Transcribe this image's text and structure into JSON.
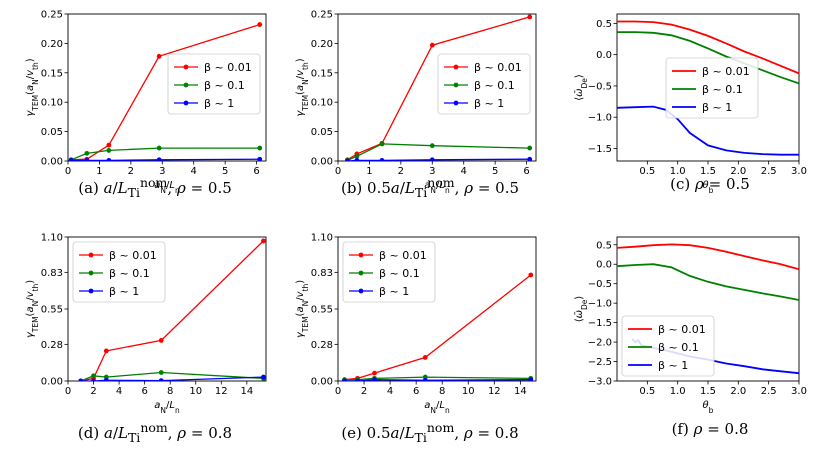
{
  "panels": [
    {
      "id": "a",
      "caption": "(a) a/L_Ti^nom, ρ = 0.5",
      "xlabel": "a_N/L_n",
      "ylabel": "γ_TEM(a_N/v_th)",
      "xlim": [
        0,
        6.3
      ],
      "ylim": [
        0,
        0.25
      ],
      "xticks": [
        0,
        1,
        2,
        3,
        4,
        5,
        6
      ],
      "yticks": [
        0.0,
        0.05,
        0.1,
        0.15,
        0.2,
        0.25
      ],
      "xtick_labels": [
        "0",
        "1",
        "2",
        "3",
        "4",
        "5",
        "6"
      ],
      "ytick_labels": [
        "0.00",
        "0.05",
        "0.10",
        "0.15",
        "0.20",
        "0.25"
      ],
      "legend": "right",
      "series": [
        {
          "name": "β ~ 0.01",
          "color": "#ff0000",
          "x": [
            0.1,
            0.6,
            1.3,
            2.9,
            6.1
          ],
          "y": [
            0.002,
            0.003,
            0.027,
            0.178,
            0.232
          ]
        },
        {
          "name": "β ~ 0.1",
          "color": "#008000",
          "x": [
            0.1,
            0.6,
            1.3,
            2.9,
            6.1
          ],
          "y": [
            0.002,
            0.013,
            0.018,
            0.022,
            0.022
          ]
        },
        {
          "name": "β ~ 1",
          "color": "#0000ff",
          "x": [
            0.1,
            0.6,
            1.3,
            2.9,
            6.1
          ],
          "y": [
            0.001,
            0.001,
            0.001,
            0.002,
            0.003
          ]
        }
      ]
    },
    {
      "id": "b",
      "caption": "(b) 0.5a/L_Ti^nom, ρ = 0.5",
      "xlabel": "a_N/L_n",
      "ylabel": "γ_TEM(a_N/v_th)",
      "xlim": [
        0,
        6.3
      ],
      "ylim": [
        0,
        0.25
      ],
      "xticks": [
        0,
        1,
        2,
        3,
        4,
        5,
        6
      ],
      "yticks": [
        0.0,
        0.05,
        0.1,
        0.15,
        0.2,
        0.25
      ],
      "xtick_labels": [
        "0",
        "1",
        "2",
        "3",
        "4",
        "5",
        "6"
      ],
      "ytick_labels": [
        "0.00",
        "0.05",
        "0.10",
        "0.15",
        "0.20",
        "0.25"
      ],
      "legend": "right",
      "series": [
        {
          "name": "β ~ 0.01",
          "color": "#ff0000",
          "x": [
            0.3,
            0.6,
            1.4,
            3.0,
            6.1
          ],
          "y": [
            0.002,
            0.012,
            0.03,
            0.197,
            0.245
          ]
        },
        {
          "name": "β ~ 0.1",
          "color": "#008000",
          "x": [
            0.3,
            0.6,
            1.4,
            3.0,
            6.1
          ],
          "y": [
            0.001,
            0.008,
            0.029,
            0.026,
            0.022
          ]
        },
        {
          "name": "β ~ 1",
          "color": "#0000ff",
          "x": [
            0.3,
            0.6,
            1.4,
            3.0,
            6.1
          ],
          "y": [
            0.0,
            0.001,
            0.001,
            0.002,
            0.003
          ]
        }
      ]
    },
    {
      "id": "c",
      "caption": "(c) ρ = 0.5",
      "xlabel": "θ_b",
      "ylabel": "⟨ω̄_De⟩",
      "xlim": [
        0,
        3.0
      ],
      "ylim": [
        -1.7,
        0.65
      ],
      "xticks": [
        0.5,
        1.0,
        1.5,
        2.0,
        2.5,
        3.0
      ],
      "yticks": [
        -1.5,
        -1.0,
        -0.5,
        0.0,
        0.5
      ],
      "xtick_labels": [
        "0.5",
        "1.0",
        "1.5",
        "2.0",
        "2.5",
        "3.0"
      ],
      "ytick_labels": [
        "−1.5",
        "−1.0",
        "−0.5",
        "0.0",
        "0.5"
      ],
      "legend": "center",
      "series": [
        {
          "name": "β ~ 0.01",
          "color": "#ff0000",
          "x": [
            0,
            0.3,
            0.6,
            0.9,
            1.2,
            1.5,
            1.8,
            2.1,
            2.4,
            2.7,
            3.0
          ],
          "y": [
            0.53,
            0.53,
            0.52,
            0.48,
            0.4,
            0.3,
            0.18,
            0.05,
            -0.06,
            -0.18,
            -0.3
          ]
        },
        {
          "name": "β ~ 0.1",
          "color": "#008000",
          "x": [
            0,
            0.3,
            0.6,
            0.9,
            1.2,
            1.5,
            1.8,
            2.1,
            2.4,
            2.7,
            3.0
          ],
          "y": [
            0.36,
            0.36,
            0.35,
            0.31,
            0.22,
            0.1,
            -0.03,
            -0.14,
            -0.25,
            -0.36,
            -0.46
          ]
        },
        {
          "name": "β ~ 1",
          "color": "#0000ff",
          "x": [
            0,
            0.3,
            0.6,
            0.8,
            1.0,
            1.2,
            1.5,
            1.8,
            2.1,
            2.4,
            2.7,
            3.0
          ],
          "y": [
            -0.85,
            -0.84,
            -0.83,
            -0.88,
            -1.03,
            -1.25,
            -1.45,
            -1.53,
            -1.57,
            -1.59,
            -1.6,
            -1.6
          ]
        }
      ]
    },
    {
      "id": "d",
      "caption": "(d) a/L_Ti^nom, ρ = 0.8",
      "xlabel": "a_N/L_n",
      "ylabel": "γ_TEM(a_N/v_th)",
      "xlim": [
        0,
        15.5
      ],
      "ylim": [
        0,
        1.1
      ],
      "xticks": [
        0,
        2,
        4,
        6,
        8,
        10,
        12,
        14
      ],
      "yticks": [
        0.0,
        0.28,
        0.55,
        0.83,
        1.1
      ],
      "xtick_labels": [
        "0",
        "2",
        "4",
        "6",
        "8",
        "10",
        "12",
        "14"
      ],
      "ytick_labels": [
        "0.00",
        "0.28",
        "0.55",
        "0.83",
        "1.10"
      ],
      "legend": "upper-left",
      "series": [
        {
          "name": "β ~ 0.01",
          "color": "#ff0000",
          "x": [
            1.0,
            2.0,
            3.0,
            7.3,
            15.3
          ],
          "y": [
            0.0,
            0.02,
            0.23,
            0.31,
            1.07
          ]
        },
        {
          "name": "β ~ 0.1",
          "color": "#008000",
          "x": [
            1.0,
            2.0,
            3.0,
            7.3,
            15.3
          ],
          "y": [
            0.0,
            0.04,
            0.03,
            0.065,
            0.02
          ]
        },
        {
          "name": "β ~ 1",
          "color": "#0000ff",
          "x": [
            1.0,
            2.0,
            3.0,
            7.3,
            15.3
          ],
          "y": [
            0.0,
            0.0,
            0.005,
            0.003,
            0.03
          ]
        }
      ]
    },
    {
      "id": "e",
      "caption": "(e) 0.5a/L_Ti^nom, ρ = 0.8",
      "xlabel": "a_N/L_n",
      "ylabel": "γ_TEM(a_N/v_th)",
      "xlim": [
        0,
        15.2
      ],
      "ylim": [
        0,
        1.1
      ],
      "xticks": [
        0,
        2,
        4,
        6,
        8,
        10,
        12,
        14
      ],
      "yticks": [
        0.0,
        0.28,
        0.55,
        0.83,
        1.1
      ],
      "xtick_labels": [
        "0",
        "2",
        "4",
        "6",
        "8",
        "10",
        "12",
        "14"
      ],
      "ytick_labels": [
        "0.00",
        "0.28",
        "0.55",
        "0.83",
        "1.10"
      ],
      "legend": "upper-left",
      "series": [
        {
          "name": "β ~ 0.01",
          "color": "#ff0000",
          "x": [
            0.5,
            1.5,
            2.8,
            6.7,
            14.8
          ],
          "y": [
            0.01,
            0.02,
            0.06,
            0.18,
            0.81
          ]
        },
        {
          "name": "β ~ 0.1",
          "color": "#008000",
          "x": [
            0.5,
            1.5,
            2.8,
            6.7,
            14.8
          ],
          "y": [
            0.01,
            0.01,
            0.02,
            0.03,
            0.02
          ]
        },
        {
          "name": "β ~ 1",
          "color": "#0000ff",
          "x": [
            0.5,
            1.5,
            2.8,
            6.7,
            14.8
          ],
          "y": [
            0.0,
            0.0,
            0.01,
            0.005,
            0.01
          ]
        }
      ]
    },
    {
      "id": "f",
      "caption": "(f) ρ = 0.8",
      "xlabel": "θ_b",
      "ylabel": "⟨ω̄_De⟩",
      "xlim": [
        0,
        3.0
      ],
      "ylim": [
        -3.0,
        0.7
      ],
      "xticks": [
        0.5,
        1.0,
        1.5,
        2.0,
        2.5,
        3.0
      ],
      "yticks": [
        -3.0,
        -2.5,
        -2.0,
        -1.5,
        -1.0,
        -0.5,
        0.0,
        0.5
      ],
      "xtick_labels": [
        "0.5",
        "1.0",
        "1.5",
        "2.0",
        "2.5",
        "3.0"
      ],
      "ytick_labels": [
        "−3.0",
        "−2.5",
        "−2.0",
        "−1.5",
        "−1.0",
        "−0.5",
        "0.0",
        "0.5"
      ],
      "legend": "lower-left",
      "series": [
        {
          "name": "β ~ 0.01",
          "color": "#ff0000",
          "x": [
            0,
            0.3,
            0.6,
            0.9,
            1.2,
            1.5,
            1.8,
            2.1,
            2.4,
            2.7,
            3.0
          ],
          "y": [
            0.42,
            0.45,
            0.49,
            0.51,
            0.49,
            0.42,
            0.32,
            0.21,
            0.1,
            0.0,
            -0.13
          ]
        },
        {
          "name": "β ~ 0.1",
          "color": "#008000",
          "x": [
            0,
            0.3,
            0.6,
            0.9,
            1.2,
            1.5,
            1.8,
            2.1,
            2.4,
            2.7,
            3.0
          ],
          "y": [
            -0.05,
            -0.02,
            0.0,
            -0.08,
            -0.3,
            -0.45,
            -0.57,
            -0.66,
            -0.75,
            -0.83,
            -0.92
          ]
        },
        {
          "name": "β ~ 1",
          "color": "#0000ff",
          "x": [
            0.25,
            0.3,
            0.35,
            0.4,
            0.6,
            0.9,
            1.2,
            1.5,
            1.8,
            2.1,
            2.4,
            2.7,
            3.0
          ],
          "y": [
            -1.92,
            -2.0,
            -1.95,
            -2.08,
            -2.15,
            -2.25,
            -2.37,
            -2.45,
            -2.55,
            -2.62,
            -2.7,
            -2.75,
            -2.8
          ]
        }
      ]
    }
  ],
  "chart_data": [
    {
      "type": "line",
      "title": "",
      "xlabel": "a_N/L_n",
      "ylabel": "γ_TEM(a_N/v_th)",
      "ylim": [
        0,
        0.25
      ],
      "series": [
        {
          "name": "β ~ 0.01",
          "x": [
            0.1,
            0.6,
            1.3,
            2.9,
            6.1
          ],
          "values": [
            0.002,
            0.003,
            0.027,
            0.178,
            0.232
          ]
        },
        {
          "name": "β ~ 0.1",
          "x": [
            0.1,
            0.6,
            1.3,
            2.9,
            6.1
          ],
          "values": [
            0.002,
            0.013,
            0.018,
            0.022,
            0.022
          ]
        },
        {
          "name": "β ~ 1",
          "x": [
            0.1,
            0.6,
            1.3,
            2.9,
            6.1
          ],
          "values": [
            0.001,
            0.001,
            0.001,
            0.002,
            0.003
          ]
        }
      ]
    },
    {
      "type": "line",
      "title": "",
      "xlabel": "a_N/L_n",
      "ylabel": "γ_TEM(a_N/v_th)",
      "ylim": [
        0,
        0.25
      ],
      "series": [
        {
          "name": "β ~ 0.01",
          "x": [
            0.3,
            0.6,
            1.4,
            3.0,
            6.1
          ],
          "values": [
            0.002,
            0.012,
            0.03,
            0.197,
            0.245
          ]
        },
        {
          "name": "β ~ 0.1",
          "x": [
            0.3,
            0.6,
            1.4,
            3.0,
            6.1
          ],
          "values": [
            0.001,
            0.008,
            0.029,
            0.026,
            0.022
          ]
        },
        {
          "name": "β ~ 1",
          "x": [
            0.3,
            0.6,
            1.4,
            3.0,
            6.1
          ],
          "values": [
            0.0,
            0.001,
            0.001,
            0.002,
            0.003
          ]
        }
      ]
    },
    {
      "type": "line",
      "title": "",
      "xlabel": "θ_b",
      "ylabel": "⟨ω̄_De⟩",
      "ylim": [
        -1.7,
        0.65
      ]
    },
    {
      "type": "line",
      "title": "",
      "xlabel": "a_N/L_n",
      "ylabel": "γ_TEM(a_N/v_th)",
      "ylim": [
        0,
        1.1
      ],
      "series": [
        {
          "name": "β ~ 0.01",
          "x": [
            1.0,
            2.0,
            3.0,
            7.3,
            15.3
          ],
          "values": [
            0.0,
            0.02,
            0.23,
            0.31,
            1.07
          ]
        },
        {
          "name": "β ~ 0.1",
          "x": [
            1.0,
            2.0,
            3.0,
            7.3,
            15.3
          ],
          "values": [
            0.0,
            0.04,
            0.03,
            0.065,
            0.02
          ]
        },
        {
          "name": "β ~ 1",
          "x": [
            1.0,
            2.0,
            3.0,
            7.3,
            15.3
          ],
          "values": [
            0.0,
            0.0,
            0.005,
            0.003,
            0.03
          ]
        }
      ]
    },
    {
      "type": "line",
      "title": "",
      "xlabel": "a_N/L_n",
      "ylabel": "γ_TEM(a_N/v_th)",
      "ylim": [
        0,
        1.1
      ],
      "series": [
        {
          "name": "β ~ 0.01",
          "x": [
            0.5,
            1.5,
            2.8,
            6.7,
            14.8
          ],
          "values": [
            0.01,
            0.02,
            0.06,
            0.18,
            0.81
          ]
        },
        {
          "name": "β ~ 0.1",
          "x": [
            0.5,
            1.5,
            2.8,
            6.7,
            14.8
          ],
          "values": [
            0.01,
            0.01,
            0.02,
            0.03,
            0.02
          ]
        },
        {
          "name": "β ~ 1",
          "x": [
            0.5,
            1.5,
            2.8,
            6.7,
            14.8
          ],
          "values": [
            0.0,
            0.0,
            0.01,
            0.005,
            0.01
          ]
        }
      ]
    },
    {
      "type": "line",
      "title": "",
      "xlabel": "θ_b",
      "ylabel": "⟨ω̄_De⟩",
      "ylim": [
        -3.0,
        0.7
      ]
    }
  ]
}
